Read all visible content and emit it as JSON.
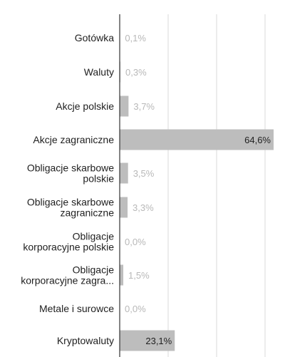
{
  "chart_data": {
    "type": "bar",
    "orientation": "horizontal",
    "title": "",
    "xlabel": "",
    "ylabel": "",
    "xlim": [
      0,
      65
    ],
    "grid": true,
    "legend": "none",
    "bar_color": "#bdbdbd",
    "categories": [
      [
        "Gotówka"
      ],
      [
        "Waluty"
      ],
      [
        "Akcje polskie"
      ],
      [
        "Akcje zagraniczne"
      ],
      [
        "Obligacje skarbowe",
        "polskie"
      ],
      [
        "Obligacje skarbowe",
        "zagraniczne"
      ],
      [
        "Obligacje",
        "korporacyjne polskie"
      ],
      [
        "Obligacje",
        "korporacyjne zagra..."
      ],
      [
        "Metale i surowce"
      ],
      [
        "Kryptowaluty"
      ]
    ],
    "values": [
      0.1,
      0.3,
      3.7,
      64.6,
      3.5,
      3.3,
      0.0,
      1.5,
      0.0,
      23.1
    ],
    "value_labels": [
      "0,1%",
      "0,3%",
      "3,7%",
      "64,6%",
      "3,5%",
      "3,3%",
      "0,0%",
      "1,5%",
      "0,0%",
      "23,1%"
    ]
  }
}
